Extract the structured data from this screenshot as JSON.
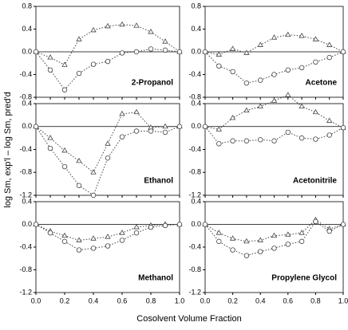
{
  "xlabel": "Cosolvent Volume Fraction",
  "ylabel": "log Sm, exp'l – log Sm, pred'd",
  "chart_data": [
    {
      "type": "line",
      "annotation": "2-Propanol",
      "x": [
        0,
        0.1,
        0.2,
        0.3,
        0.4,
        0.5,
        0.6,
        0.7,
        0.8,
        0.9,
        1.0
      ],
      "ylim": [
        -0.8,
        0.8
      ],
      "yticks": [
        0.8,
        0.4,
        {
          "value": 0,
          "label": "0.0"
        },
        -0.4,
        -0.8
      ],
      "series": [
        {
          "marker": "triangle",
          "color": "#444",
          "values": [
            0,
            -0.1,
            -0.23,
            0.22,
            0.38,
            0.45,
            0.48,
            0.46,
            0.35,
            0.18,
            0
          ]
        },
        {
          "marker": "circle",
          "color": "#444",
          "values": [
            0,
            -0.32,
            -0.67,
            -0.38,
            -0.22,
            -0.17,
            -0.02,
            0,
            0.05,
            0.03,
            0
          ]
        }
      ]
    },
    {
      "type": "line",
      "annotation": "Acetone",
      "x": [
        0,
        0.1,
        0.2,
        0.3,
        0.4,
        0.5,
        0.6,
        0.7,
        0.8,
        0.9,
        1.0
      ],
      "ylim": [
        -0.8,
        0.8
      ],
      "yticks": [
        0.8,
        0.4,
        {
          "value": 0,
          "label": "0.0"
        },
        -0.4,
        -0.8
      ],
      "series": [
        {
          "marker": "triangle",
          "color": "#444",
          "values": [
            0,
            -0.05,
            0.05,
            -0.02,
            0.12,
            0.25,
            0.3,
            0.28,
            0.22,
            0.12,
            0
          ]
        },
        {
          "marker": "circle",
          "color": "#444",
          "values": [
            0,
            -0.25,
            -0.35,
            -0.55,
            -0.5,
            -0.4,
            -0.32,
            -0.28,
            -0.18,
            -0.1,
            0
          ]
        }
      ]
    },
    {
      "type": "line",
      "annotation": "Ethanol",
      "x": [
        0,
        0.1,
        0.2,
        0.3,
        0.4,
        0.5,
        0.6,
        0.7,
        0.8,
        0.9,
        1.0
      ],
      "ylim": [
        -1.2,
        0.4
      ],
      "yticks": [
        0.4,
        {
          "value": 0,
          "label": "0.0"
        },
        -0.4,
        -0.8,
        -1.2
      ],
      "series": [
        {
          "marker": "triangle",
          "color": "#444",
          "values": [
            0,
            -0.2,
            -0.42,
            -0.6,
            -0.8,
            -0.3,
            0.22,
            0.25,
            -0.02,
            0,
            0
          ]
        },
        {
          "marker": "circle",
          "color": "#444",
          "values": [
            0,
            -0.38,
            -0.7,
            -1.03,
            -1.2,
            -0.55,
            -0.18,
            -0.08,
            -0.08,
            -0.1,
            0
          ]
        }
      ]
    },
    {
      "type": "line",
      "annotation": "Acetonitrile",
      "x": [
        0,
        0.1,
        0.2,
        0.3,
        0.4,
        0.5,
        0.6,
        0.7,
        0.8,
        0.9,
        1.0
      ],
      "ylim": [
        -1.2,
        0.4
      ],
      "yticks": [
        0.4,
        {
          "value": 0,
          "label": "0.0"
        },
        -0.4,
        -0.8,
        -1.2
      ],
      "series": [
        {
          "marker": "triangle",
          "color": "#444",
          "values": [
            0,
            -0.05,
            0.15,
            0.28,
            0.35,
            0.45,
            0.55,
            0.35,
            0.25,
            0.1,
            -0.02
          ]
        },
        {
          "marker": "circle",
          "color": "#444",
          "values": [
            0,
            -0.3,
            -0.25,
            -0.25,
            -0.23,
            -0.25,
            -0.1,
            -0.2,
            -0.22,
            -0.15,
            -0.02
          ]
        }
      ]
    },
    {
      "type": "line",
      "annotation": "Methanol",
      "x": [
        0,
        0.1,
        0.2,
        0.3,
        0.4,
        0.5,
        0.6,
        0.7,
        0.8,
        0.9,
        1.0
      ],
      "ylim": [
        -1.2,
        0.4
      ],
      "yticks": [
        0.4,
        {
          "value": 0,
          "label": "0.0"
        },
        -0.4,
        -0.8,
        -1.2
      ],
      "xticks": [
        {
          "value": 0,
          "label": "0.0"
        },
        0.2,
        0.4,
        0.6,
        0.8,
        {
          "value": 1,
          "label": "1.0"
        }
      ],
      "series": [
        {
          "marker": "triangle",
          "color": "#444",
          "values": [
            0,
            -0.12,
            -0.2,
            -0.28,
            -0.25,
            -0.22,
            -0.15,
            -0.05,
            -0.02,
            0,
            0
          ]
        },
        {
          "marker": "circle",
          "color": "#444",
          "values": [
            0,
            -0.15,
            -0.3,
            -0.45,
            -0.42,
            -0.38,
            -0.28,
            -0.15,
            -0.05,
            -0.02,
            0
          ]
        }
      ]
    },
    {
      "type": "line",
      "annotation": "Propylene Glycol",
      "x": [
        0,
        0.1,
        0.2,
        0.3,
        0.4,
        0.5,
        0.6,
        0.7,
        0.8,
        0.9,
        1.0
      ],
      "ylim": [
        -1.2,
        0.4
      ],
      "yticks": [
        0.4,
        {
          "value": 0,
          "label": "0.0"
        },
        -0.4,
        -0.8,
        -1.2
      ],
      "xticks": [
        {
          "value": 0,
          "label": "0.0"
        },
        0.2,
        0.4,
        0.6,
        0.8,
        {
          "value": 1,
          "label": "1.0"
        }
      ],
      "series": [
        {
          "marker": "triangle",
          "color": "#444",
          "values": [
            0,
            -0.15,
            -0.25,
            -0.3,
            -0.28,
            -0.2,
            -0.18,
            -0.15,
            0.08,
            -0.08,
            0
          ]
        },
        {
          "marker": "circle",
          "color": "#444",
          "values": [
            0,
            -0.3,
            -0.45,
            -0.55,
            -0.48,
            -0.42,
            -0.35,
            -0.3,
            0.05,
            -0.12,
            0
          ]
        }
      ]
    }
  ]
}
